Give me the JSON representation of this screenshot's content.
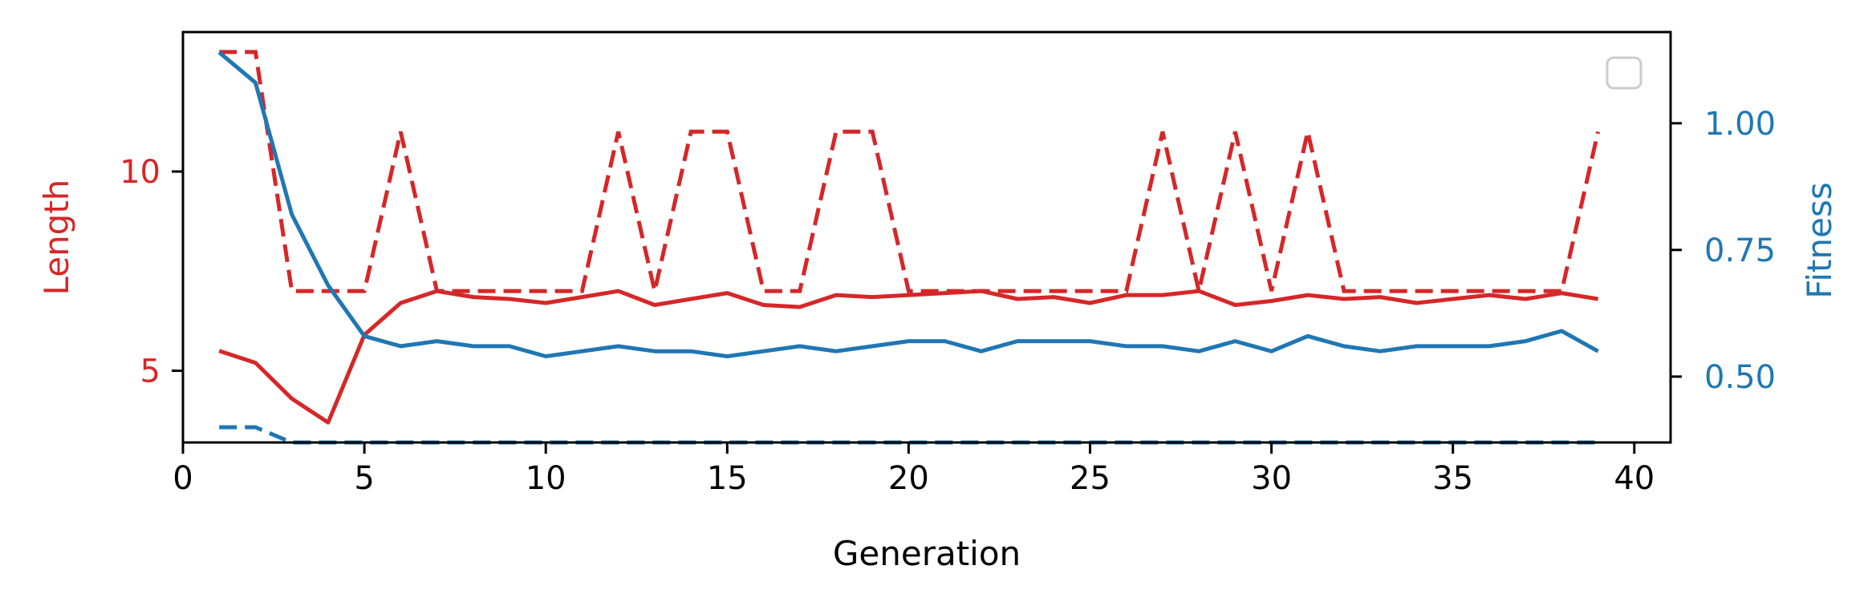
{
  "chart_data": {
    "type": "line",
    "xlabel": "Generation",
    "ylabel_left": "Length",
    "ylabel_right": "Fitness",
    "xlim": [
      0,
      41
    ],
    "ylim_left": [
      3.2,
      13.5
    ],
    "ylim_right": [
      0.37,
      1.18
    ],
    "xticks": [
      0,
      5,
      10,
      15,
      20,
      25,
      30,
      35,
      40
    ],
    "yticks_left": [
      5,
      10
    ],
    "yticks_right": [
      "0.50",
      "0.75",
      "1.00"
    ],
    "grid": false,
    "legend": "top-right (empty)",
    "colors": {
      "length": "#d62728",
      "fitness": "#1f77b4"
    },
    "x": [
      1,
      2,
      3,
      4,
      5,
      6,
      7,
      8,
      9,
      10,
      11,
      12,
      13,
      14,
      15,
      16,
      17,
      18,
      19,
      20,
      21,
      22,
      23,
      24,
      25,
      26,
      27,
      28,
      29,
      30,
      31,
      32,
      33,
      34,
      35,
      36,
      37,
      38,
      39
    ],
    "series": [
      {
        "axis": "left",
        "color": "#d62728",
        "style": "dashed",
        "values": [
          13,
          13,
          7,
          7,
          7,
          11,
          7,
          7,
          7,
          7,
          7,
          11,
          7,
          11,
          11,
          7,
          7,
          11,
          11,
          7,
          7,
          7,
          7,
          7,
          7,
          7,
          11,
          7,
          11,
          7,
          11,
          7,
          7,
          7,
          7,
          7,
          7,
          7,
          11
        ]
      },
      {
        "axis": "left",
        "color": "#d62728",
        "style": "solid",
        "values": [
          5.5,
          5.2,
          4.3,
          3.7,
          5.9,
          6.7,
          7.0,
          6.85,
          6.8,
          6.7,
          6.85,
          7.0,
          6.65,
          6.8,
          6.95,
          6.65,
          6.6,
          6.9,
          6.85,
          6.9,
          6.95,
          7.0,
          6.8,
          6.85,
          6.7,
          6.9,
          6.9,
          7.0,
          6.65,
          6.75,
          6.9,
          6.8,
          6.85,
          6.7,
          6.8,
          6.9,
          6.8,
          6.95,
          6.8
        ]
      },
      {
        "axis": "right",
        "color": "#1f77b4",
        "style": "solid",
        "values": [
          1.14,
          1.08,
          0.82,
          0.68,
          0.58,
          0.56,
          0.57,
          0.56,
          0.56,
          0.54,
          0.55,
          0.56,
          0.55,
          0.55,
          0.54,
          0.55,
          0.56,
          0.55,
          0.56,
          0.57,
          0.57,
          0.55,
          0.57,
          0.57,
          0.57,
          0.56,
          0.56,
          0.55,
          0.57,
          0.55,
          0.58,
          0.56,
          0.55,
          0.56,
          0.56,
          0.56,
          0.57,
          0.59,
          0.55
        ]
      },
      {
        "axis": "right",
        "color": "#1f77b4",
        "style": "dashed",
        "values": [
          0.4,
          0.4,
          0.37,
          0.37,
          0.37,
          0.37,
          0.37,
          0.37,
          0.37,
          0.37,
          0.37,
          0.37,
          0.37,
          0.37,
          0.37,
          0.37,
          0.37,
          0.37,
          0.37,
          0.37,
          0.37,
          0.37,
          0.37,
          0.37,
          0.37,
          0.37,
          0.37,
          0.37,
          0.37,
          0.37,
          0.37,
          0.37,
          0.37,
          0.37,
          0.37,
          0.37,
          0.37,
          0.37,
          0.37
        ]
      }
    ]
  }
}
